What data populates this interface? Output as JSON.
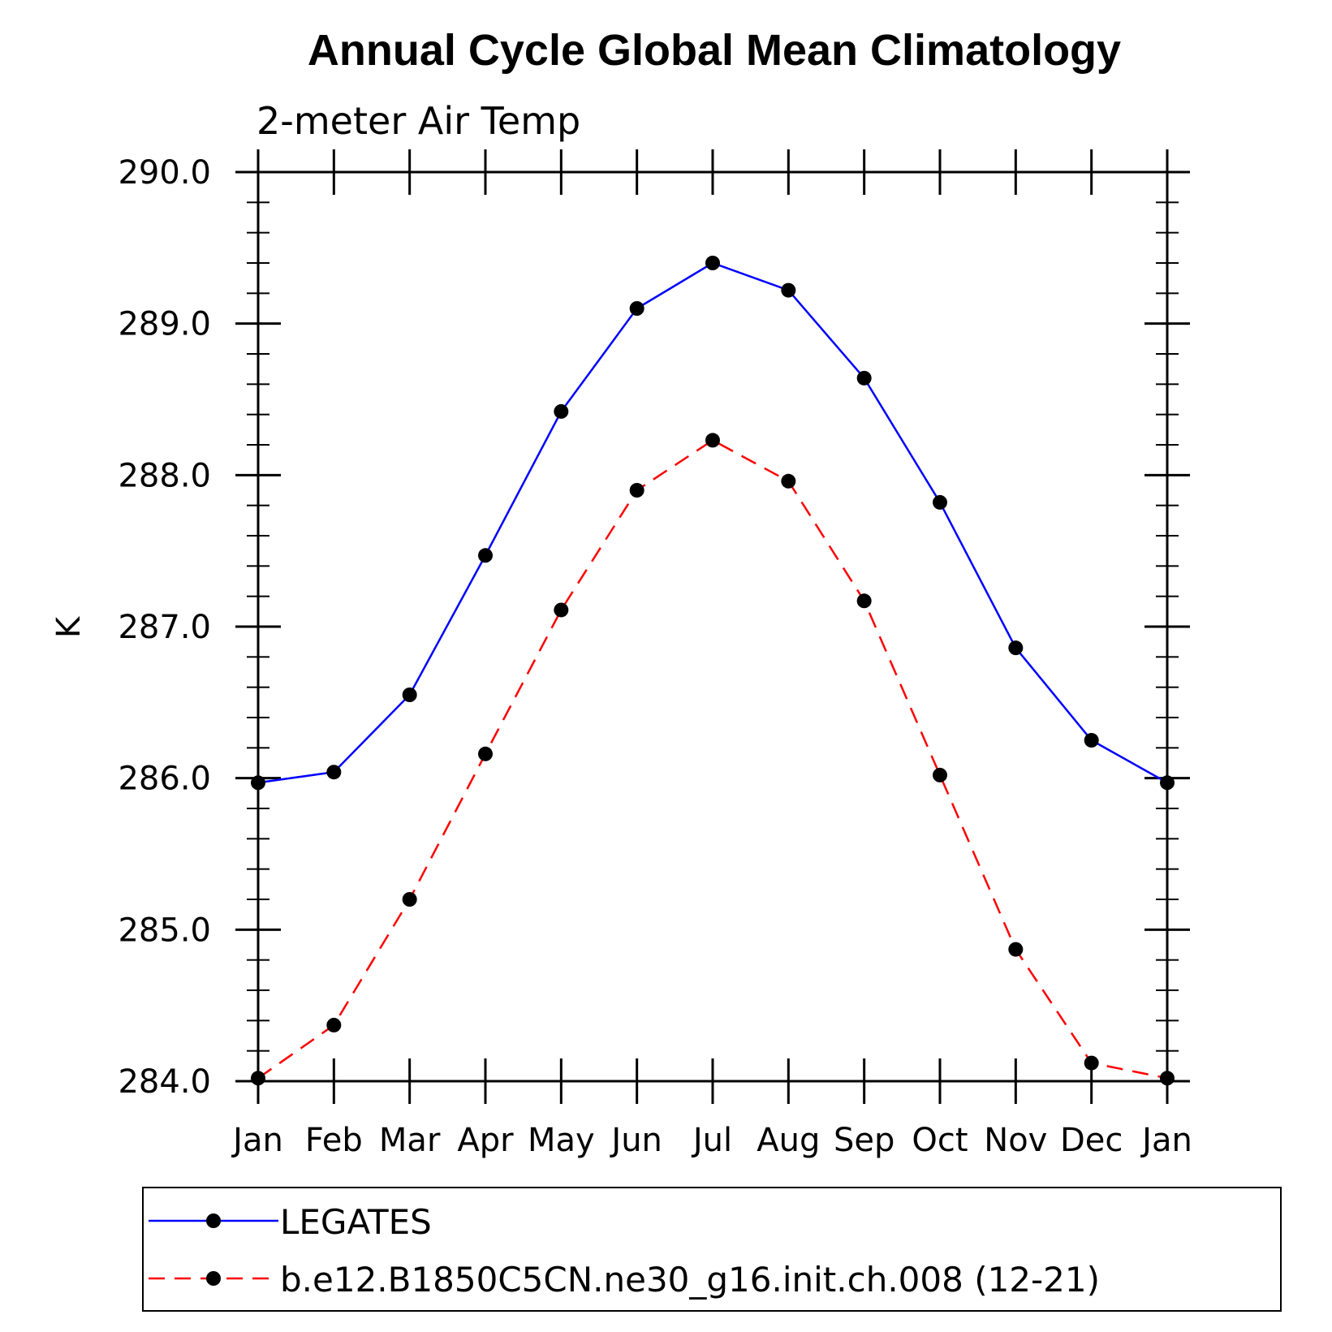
{
  "chart_data": {
    "type": "line",
    "title": "Annual Cycle Global Mean Climatology",
    "subtitle": "2-meter Air Temp",
    "xlabel": "",
    "ylabel": "K",
    "categories": [
      "Jan",
      "Feb",
      "Mar",
      "Apr",
      "May",
      "Jun",
      "Jul",
      "Aug",
      "Sep",
      "Oct",
      "Nov",
      "Dec",
      "Jan"
    ],
    "ylim": [
      284.0,
      290.0
    ],
    "yticks": [
      "290.0",
      "289.0",
      "288.0",
      "287.0",
      "286.0",
      "285.0",
      "284.0"
    ],
    "grid": false,
    "legend_position": "bottom",
    "series": [
      {
        "name": "LEGATES",
        "color": "#0000ff",
        "line_style": "solid",
        "marker": "filled-circle",
        "values": [
          285.97,
          286.04,
          286.55,
          287.47,
          288.42,
          289.1,
          289.4,
          289.22,
          288.64,
          287.82,
          286.86,
          286.25,
          285.97
        ]
      },
      {
        "name": "b.e12.B1850C5CN.ne30_g16.init.ch.008 (12-21)",
        "color": "#ff0000",
        "line_style": "dashed",
        "marker": "filled-circle",
        "values": [
          284.02,
          284.37,
          285.2,
          286.16,
          287.11,
          287.9,
          288.23,
          287.96,
          287.17,
          286.02,
          284.87,
          284.12,
          284.02
        ]
      }
    ]
  }
}
